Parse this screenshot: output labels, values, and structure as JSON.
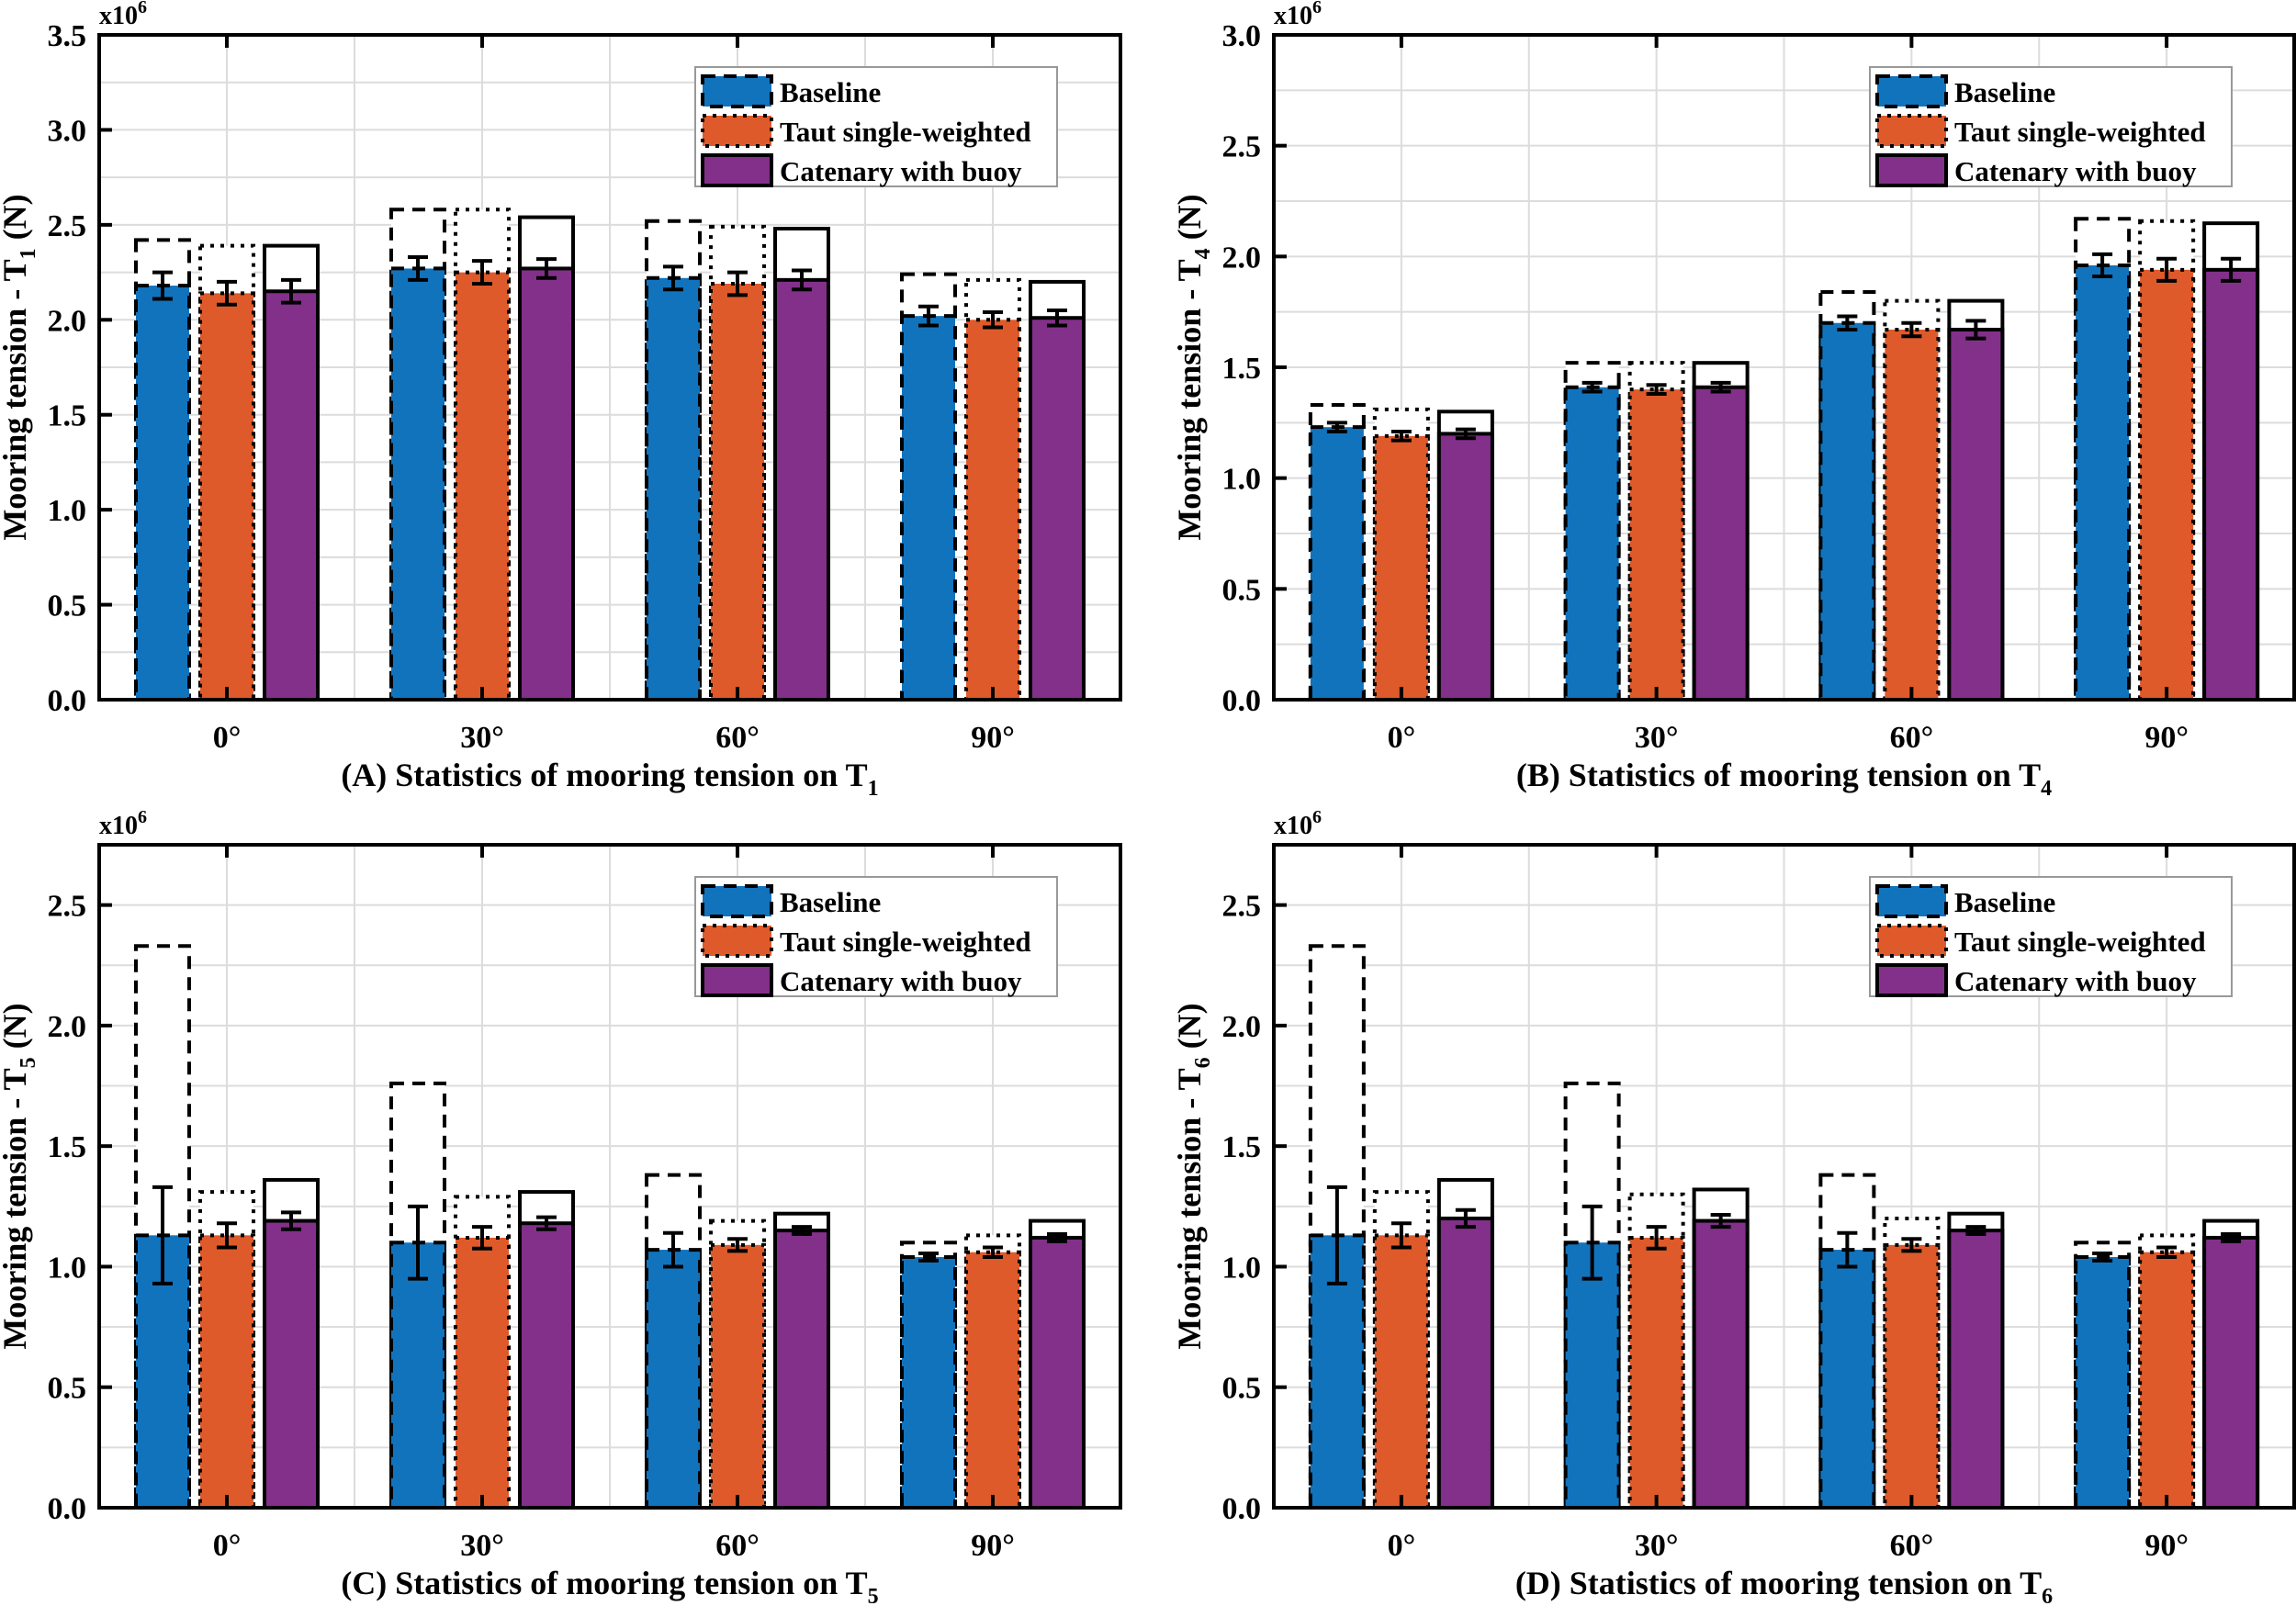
{
  "chart_data": [
    {
      "type": "bar",
      "panel": "A",
      "title_prefix": "(A) Statistics of mooring tension on T",
      "title_sub": "1",
      "ylabel_prefix": "Mooring tension - T",
      "ylabel_sub": "1",
      "ylabel_suffix": " (N)",
      "multiplier": "x10",
      "multiplier_exp": "6",
      "ylim": [
        0,
        3.5
      ],
      "yticks": [
        "0.0",
        "0.5",
        "1.0",
        "1.5",
        "2.0",
        "2.5",
        "3.0",
        "3.5"
      ],
      "ytick_step": 0.5,
      "categories": [
        "0°",
        "30°",
        "60°",
        "90°"
      ],
      "grid": true,
      "legend": "top-right",
      "series": [
        {
          "name": "Baseline",
          "mean": [
            2.18,
            2.27,
            2.22,
            2.02
          ],
          "max": [
            2.42,
            2.58,
            2.52,
            2.24
          ],
          "err": [
            0.07,
            0.06,
            0.06,
            0.05
          ]
        },
        {
          "name": "Taut single-weighted",
          "mean": [
            2.14,
            2.25,
            2.19,
            2.0
          ],
          "max": [
            2.39,
            2.58,
            2.49,
            2.21
          ],
          "err": [
            0.06,
            0.06,
            0.06,
            0.04
          ]
        },
        {
          "name": "Catenary with buoy",
          "mean": [
            2.15,
            2.27,
            2.21,
            2.01
          ],
          "max": [
            2.39,
            2.54,
            2.48,
            2.2
          ],
          "err": [
            0.06,
            0.05,
            0.05,
            0.04
          ]
        }
      ]
    },
    {
      "type": "bar",
      "panel": "B",
      "title_prefix": "(B) Statistics of mooring tension on T",
      "title_sub": "4",
      "ylabel_prefix": "Mooring tension - T",
      "ylabel_sub": "4",
      "ylabel_suffix": " (N)",
      "multiplier": "x10",
      "multiplier_exp": "6",
      "ylim": [
        0,
        3.0
      ],
      "yticks": [
        "0.0",
        "0.5",
        "1.0",
        "1.5",
        "2.0",
        "2.5",
        "3.0"
      ],
      "ytick_step": 0.5,
      "categories": [
        "0°",
        "30°",
        "60°",
        "90°"
      ],
      "grid": true,
      "legend": "top-right",
      "series": [
        {
          "name": "Baseline",
          "mean": [
            1.23,
            1.41,
            1.7,
            1.96
          ],
          "max": [
            1.33,
            1.52,
            1.84,
            2.17
          ],
          "err": [
            0.02,
            0.02,
            0.03,
            0.05
          ]
        },
        {
          "name": "Taut single-weighted",
          "mean": [
            1.19,
            1.4,
            1.67,
            1.94
          ],
          "max": [
            1.31,
            1.52,
            1.8,
            2.16
          ],
          "err": [
            0.02,
            0.02,
            0.03,
            0.05
          ]
        },
        {
          "name": "Catenary with buoy",
          "mean": [
            1.2,
            1.41,
            1.67,
            1.94
          ],
          "max": [
            1.3,
            1.52,
            1.8,
            2.15
          ],
          "err": [
            0.02,
            0.02,
            0.04,
            0.05
          ]
        }
      ]
    },
    {
      "type": "bar",
      "panel": "C",
      "title_prefix": "(C) Statistics of mooring tension on T",
      "title_sub": "5",
      "ylabel_prefix": "Mooring tension - T",
      "ylabel_sub": "5",
      "ylabel_suffix": " (N)",
      "multiplier": "x10",
      "multiplier_exp": "6",
      "ylim": [
        0,
        2.75
      ],
      "yticks": [
        "0.0",
        "0.5",
        "1.0",
        "1.5",
        "2.0",
        "2.5"
      ],
      "ytick_step": 0.5,
      "categories": [
        "0°",
        "30°",
        "60°",
        "90°"
      ],
      "grid": true,
      "legend": "top-right",
      "series": [
        {
          "name": "Baseline",
          "mean": [
            1.13,
            1.1,
            1.07,
            1.04
          ],
          "max": [
            2.33,
            1.76,
            1.38,
            1.1
          ],
          "err": [
            0.2,
            0.15,
            0.07,
            0.015
          ]
        },
        {
          "name": "Taut single-weighted",
          "mean": [
            1.13,
            1.12,
            1.09,
            1.06
          ],
          "max": [
            1.31,
            1.29,
            1.19,
            1.13
          ],
          "err": [
            0.05,
            0.045,
            0.025,
            0.02
          ]
        },
        {
          "name": "Catenary with buoy",
          "mean": [
            1.19,
            1.18,
            1.15,
            1.12
          ],
          "max": [
            1.36,
            1.31,
            1.22,
            1.19
          ],
          "err": [
            0.035,
            0.025,
            0.015,
            0.015
          ]
        }
      ]
    },
    {
      "type": "bar",
      "panel": "D",
      "title_prefix": "(D) Statistics of mooring tension on T",
      "title_sub": "6",
      "ylabel_prefix": "Mooring tension - T",
      "ylabel_sub": "6",
      "ylabel_suffix": " (N)",
      "multiplier": "x10",
      "multiplier_exp": "6",
      "ylim": [
        0,
        2.75
      ],
      "yticks": [
        "0.0",
        "0.5",
        "1.0",
        "1.5",
        "2.0",
        "2.5"
      ],
      "ytick_step": 0.5,
      "categories": [
        "0°",
        "30°",
        "60°",
        "90°"
      ],
      "grid": true,
      "legend": "top-right",
      "series": [
        {
          "name": "Baseline",
          "mean": [
            1.13,
            1.1,
            1.07,
            1.04
          ],
          "max": [
            2.33,
            1.76,
            1.38,
            1.1
          ],
          "err": [
            0.2,
            0.15,
            0.07,
            0.015
          ]
        },
        {
          "name": "Taut single-weighted",
          "mean": [
            1.13,
            1.12,
            1.09,
            1.06
          ],
          "max": [
            1.31,
            1.3,
            1.2,
            1.13
          ],
          "err": [
            0.05,
            0.045,
            0.025,
            0.02
          ]
        },
        {
          "name": "Catenary with buoy",
          "mean": [
            1.2,
            1.19,
            1.15,
            1.12
          ],
          "max": [
            1.36,
            1.32,
            1.22,
            1.19
          ],
          "err": [
            0.035,
            0.025,
            0.015,
            0.015
          ]
        }
      ]
    }
  ],
  "colors": {
    "Baseline": "#1273bd",
    "Taut single-weighted": "#de5a2a",
    "Catenary with buoy": "#83308a"
  },
  "line_styles": {
    "Baseline": "dashed",
    "Taut single-weighted": "dotted",
    "Catenary with buoy": "solid"
  }
}
